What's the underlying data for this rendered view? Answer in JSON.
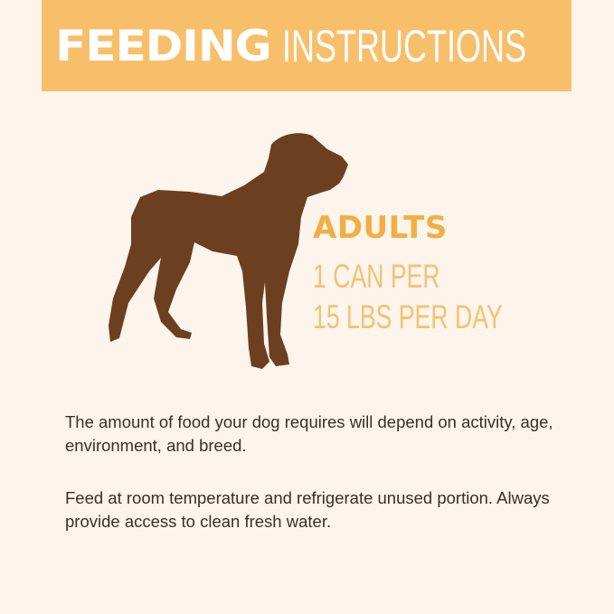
{
  "header": {
    "title_bold": "FEEDING",
    "title_light": "INSTRUCTIONS"
  },
  "colors": {
    "banner": "#f8bf6a",
    "background": "#fdf5ec",
    "dog": "#6b3f20",
    "accent": "#f2ae44"
  },
  "illustration": {
    "icon": "dog-silhouette-icon"
  },
  "adults": {
    "label": "ADULTS",
    "line1": "1 CAN PER",
    "line2": "15 LBS PER DAY"
  },
  "paragraphs": [
    "The amount of food your dog requires will depend on activity, age, environment, and breed.",
    "Feed at room temperature and refrigerate unused portion. Always provide access to clean fresh water."
  ]
}
